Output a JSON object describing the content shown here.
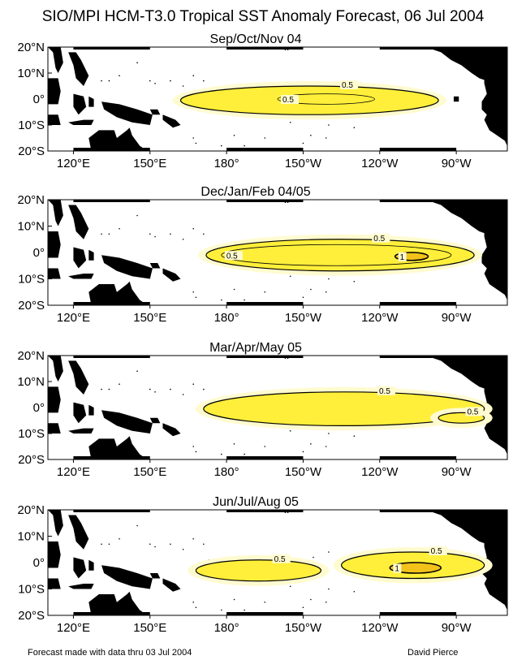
{
  "figure": {
    "title": "SIO/MPI HCM-T3.0 Tropical SST Anomaly Forecast, 06 Jul 2004",
    "footer_left": "Forecast made with data thru 03 Jul 2004",
    "footer_right": "David Pierce"
  },
  "colors": {
    "anomaly_fill_outer": "#fffbd0",
    "anomaly_fill": "#ffef3a",
    "anomaly_fill_inner": "#f2c21a",
    "land": "#000000",
    "contour": "#000000"
  },
  "chart_data": [
    {
      "type": "contour-map",
      "title": "Sep/Oct/Nov 04",
      "x_ticks": [
        "120°E",
        "150°E",
        "180°",
        "150°W",
        "120°W",
        "90°W"
      ],
      "y_ticks": [
        "20°N",
        "10°N",
        "0°",
        "10°S",
        "20°S"
      ],
      "xlim": [
        110,
        290
      ],
      "ylim": [
        -20,
        20
      ],
      "contours": [
        {
          "level": 0.5,
          "label": "0.5",
          "lon_range": [
            162,
            263
          ],
          "lat_range": [
            -6,
            5
          ]
        },
        {
          "level": 0.5,
          "label": "0.5",
          "lon_range": [
            200,
            238
          ],
          "lat_range": [
            -2,
            2
          ],
          "note": "inner"
        }
      ]
    },
    {
      "type": "contour-map",
      "title": "Dec/Jan/Feb 04/05",
      "x_ticks": [
        "120°E",
        "150°E",
        "180°",
        "150°W",
        "120°W",
        "90°W"
      ],
      "y_ticks": [
        "20°N",
        "10°N",
        "0°",
        "10°S",
        "20°S"
      ],
      "xlim": [
        110,
        290
      ],
      "ylim": [
        -20,
        20
      ],
      "contours": [
        {
          "level": 0.5,
          "label": "0.5",
          "lon_range": [
            172,
            277
          ],
          "lat_range": [
            -7,
            5
          ]
        },
        {
          "level": 0.5,
          "label": "0.5",
          "lon_range": [
            178,
            268
          ],
          "lat_range": [
            -5,
            3
          ],
          "note": "inner"
        },
        {
          "level": 1,
          "label": "1",
          "lon_range": [
            246,
            259
          ],
          "lat_range": [
            -3,
            0
          ]
        }
      ]
    },
    {
      "type": "contour-map",
      "title": "Mar/Apr/May 05",
      "x_ticks": [
        "120°E",
        "150°E",
        "180°",
        "150°W",
        "120°W",
        "90°W"
      ],
      "y_ticks": [
        "20°N",
        "10°N",
        "0°",
        "10°S",
        "20°S"
      ],
      "xlim": [
        110,
        290
      ],
      "ylim": [
        -20,
        20
      ],
      "contours": [
        {
          "level": 0.5,
          "label": "0.5",
          "lon_range": [
            171,
            281
          ],
          "lat_range": [
            -7,
            6
          ]
        },
        {
          "level": 0.5,
          "label": "0.5",
          "lon_range": [
            263,
            281
          ],
          "lat_range": [
            -6,
            -2
          ],
          "note": "east patch"
        }
      ]
    },
    {
      "type": "contour-map",
      "title": "Jun/Jul/Aug 05",
      "x_ticks": [
        "120°E",
        "150°E",
        "180°",
        "150°W",
        "120°W",
        "90°W"
      ],
      "y_ticks": [
        "20°N",
        "10°N",
        "0°",
        "10°S",
        "20°S"
      ],
      "xlim": [
        110,
        290
      ],
      "ylim": [
        -20,
        20
      ],
      "contours": [
        {
          "level": 0.5,
          "label": "0.5",
          "lon_range": [
            168,
            217
          ],
          "lat_range": [
            -7,
            1
          ]
        },
        {
          "level": 0.5,
          "label": "0.5",
          "lon_range": [
            225,
            281
          ],
          "lat_range": [
            -6,
            4
          ]
        },
        {
          "level": 1,
          "label": "1",
          "lon_range": [
            244,
            264
          ],
          "lat_range": [
            -4,
            0
          ]
        }
      ]
    }
  ]
}
